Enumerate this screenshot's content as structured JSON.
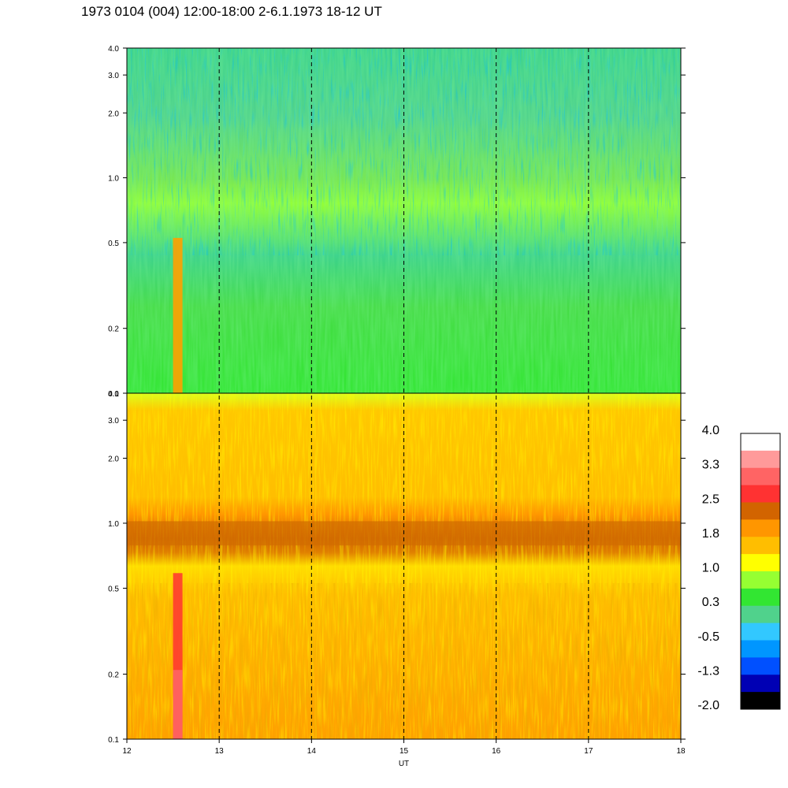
{
  "title": "1973 0104 (004) 12:00-18:00 2-6.1.1973  18-12 UT",
  "chart_data": {
    "type": "heatmap",
    "title": "1973 0104 (004) 12:00-18:00 2-6.1.1973  18-12 UT",
    "xlabel": "UT",
    "x_ticks": [
      12,
      13,
      14,
      15,
      16,
      17,
      18
    ],
    "x_tick_labels": [
      "12",
      "13",
      "14",
      "15",
      "16",
      "17",
      "18"
    ],
    "xlim": [
      12,
      18
    ],
    "dashed_vlines": [
      13,
      14,
      15,
      16,
      17
    ],
    "panels": [
      {
        "y_scale": "log",
        "ylim": [
          0.1,
          4.0
        ],
        "y_ticks": [
          0.1,
          0.2,
          0.5,
          1.0,
          2.0,
          3.0,
          4.0
        ],
        "y_tick_labels": [
          "0.1",
          "0.2",
          "0.5",
          "1.0",
          "2.0",
          "3.0",
          "4.0"
        ]
      },
      {
        "y_scale": "log",
        "ylim": [
          0.1,
          4.0
        ],
        "y_ticks": [
          0.1,
          0.2,
          0.5,
          1.0,
          2.0,
          3.0,
          4.0
        ],
        "y_tick_labels": [
          "0.1",
          "0.2",
          "0.5",
          "1.0",
          "2.0",
          "3.0",
          "4.0"
        ]
      }
    ],
    "colorbar": {
      "labels": [
        "4.0",
        "3.3",
        "2.5",
        "1.8",
        "1.0",
        "0.3",
        "-0.5",
        "-1.3",
        "-2.0"
      ],
      "colors": [
        "#ffffff",
        "#ff9a9a",
        "#ff6464",
        "#ff3232",
        "#d26400",
        "#ff9600",
        "#ffbe00",
        "#ffff00",
        "#96ff32",
        "#32e632",
        "#50d28c",
        "#32c8ff",
        "#0096ff",
        "#0050ff",
        "#0000b4",
        "#000000"
      ]
    }
  }
}
